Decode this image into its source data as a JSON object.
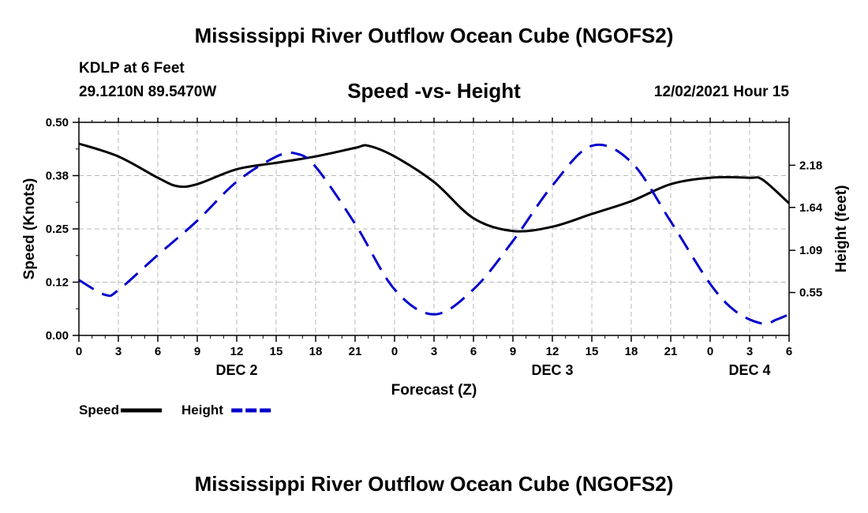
{
  "header": {
    "title": "Mississippi River Outflow Ocean Cube (NGOFS2)",
    "station": "KDLP at 6 Feet",
    "coords": "29.1210N  89.5470W",
    "subtitle": "Speed -vs- Height",
    "datetime": "12/02/2021 Hour 15"
  },
  "footer": {
    "title": "Mississippi River Outflow Ocean Cube (NGOFS2)"
  },
  "chart_data": {
    "type": "line",
    "xlabel": "Forecast (Z)",
    "ylabel": "Speed (Knots)",
    "y2label": "Height (feet)",
    "x_range": [
      0,
      54
    ],
    "x_tick_values": [
      0,
      3,
      6,
      9,
      12,
      15,
      18,
      21,
      24,
      27,
      30,
      33,
      36,
      39,
      42,
      45,
      48,
      51,
      54
    ],
    "x_tick_labels": [
      "0",
      "3",
      "6",
      "9",
      "12",
      "15",
      "18",
      "21",
      "0",
      "3",
      "6",
      "9",
      "12",
      "15",
      "18",
      "21",
      "0",
      "3",
      "6"
    ],
    "date_labels": [
      {
        "x": 12,
        "label": "DEC 2"
      },
      {
        "x": 36,
        "label": "DEC 3"
      },
      {
        "x": 51,
        "label": "DEC 4"
      }
    ],
    "ylim": [
      0,
      0.5
    ],
    "y_tick_values": [
      0,
      0.125,
      0.25,
      0.375,
      0.5
    ],
    "y_tick_labels": [
      "0.00",
      "0.12",
      "0.25",
      "0.38",
      "0.50"
    ],
    "y2lim": [
      0,
      2.73
    ],
    "y2_tick_values": [
      0.55,
      1.09,
      1.64,
      2.18
    ],
    "y2_tick_labels": [
      "0.55",
      "1.09",
      "1.64",
      "2.18"
    ],
    "grid": true,
    "series": [
      {
        "name": "Speed",
        "axis": "left",
        "color": "#000000",
        "style": "solid",
        "x": [
          0,
          3,
          6,
          7.5,
          9,
          12,
          15,
          18,
          21,
          22,
          24,
          27,
          30,
          33,
          36,
          39,
          42,
          45,
          48,
          51,
          52,
          54
        ],
        "y": [
          0.45,
          0.42,
          0.37,
          0.35,
          0.355,
          0.39,
          0.405,
          0.42,
          0.44,
          0.445,
          0.42,
          0.36,
          0.275,
          0.245,
          0.255,
          0.285,
          0.315,
          0.355,
          0.37,
          0.37,
          0.365,
          0.31
        ]
      },
      {
        "name": "Height",
        "axis": "right",
        "color": "#0000cc",
        "style": "dashed",
        "x": [
          0,
          2,
          3,
          6,
          9,
          12,
          15,
          16.5,
          18,
          21,
          24,
          27,
          30,
          33,
          36,
          39,
          42,
          45,
          48,
          50,
          52,
          53,
          54
        ],
        "y": [
          0.71,
          0.52,
          0.58,
          1.03,
          1.47,
          1.97,
          2.29,
          2.33,
          2.16,
          1.43,
          0.59,
          0.27,
          0.59,
          1.21,
          1.92,
          2.43,
          2.22,
          1.46,
          0.66,
          0.3,
          0.15,
          0.2,
          0.27
        ]
      }
    ],
    "legend": {
      "placement": "bottom-left",
      "entries": [
        "Speed",
        "Height"
      ]
    }
  }
}
